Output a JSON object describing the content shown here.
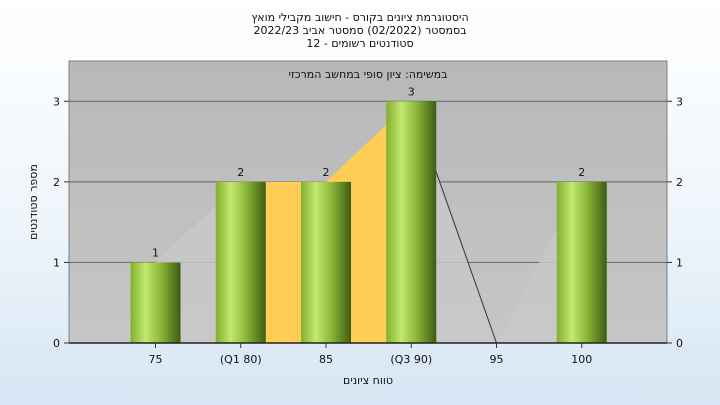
{
  "titles": {
    "line1": "היסטוגרמת ציונים בקורס - חישוב מקבילי מואץ",
    "line2": "בסמסטר  (02/2022)  סמסטר אביב 2022/23",
    "line3": "סטודנטים רשומים - 12"
  },
  "chart_data": {
    "type": "bar",
    "subtitle": "במשימה: ציון סופי במחשב המרכזי",
    "xlabel": "טווח ציונים",
    "ylabel": "מספר סטודנטים",
    "categories": [
      "75",
      "(Q1 80)",
      "85",
      "(Q3 90)",
      "95",
      "100"
    ],
    "series": [
      {
        "values": [
          1,
          2,
          2,
          3,
          0,
          2
        ]
      }
    ],
    "data_labels": [
      "1",
      "2",
      "2",
      "3",
      "",
      "2"
    ],
    "quartile_band": {
      "from": "(Q1 80)",
      "to": "(Q3 90)"
    },
    "ylim": [
      0,
      3.5
    ],
    "yticks": [
      "0",
      "1",
      "2",
      "3"
    ],
    "grid": "horizontal",
    "colors": {
      "bar": "#9acd32",
      "area": "#c8c8c8",
      "band": "#ffcc55",
      "plot_bg": "#c0c0c0"
    }
  }
}
